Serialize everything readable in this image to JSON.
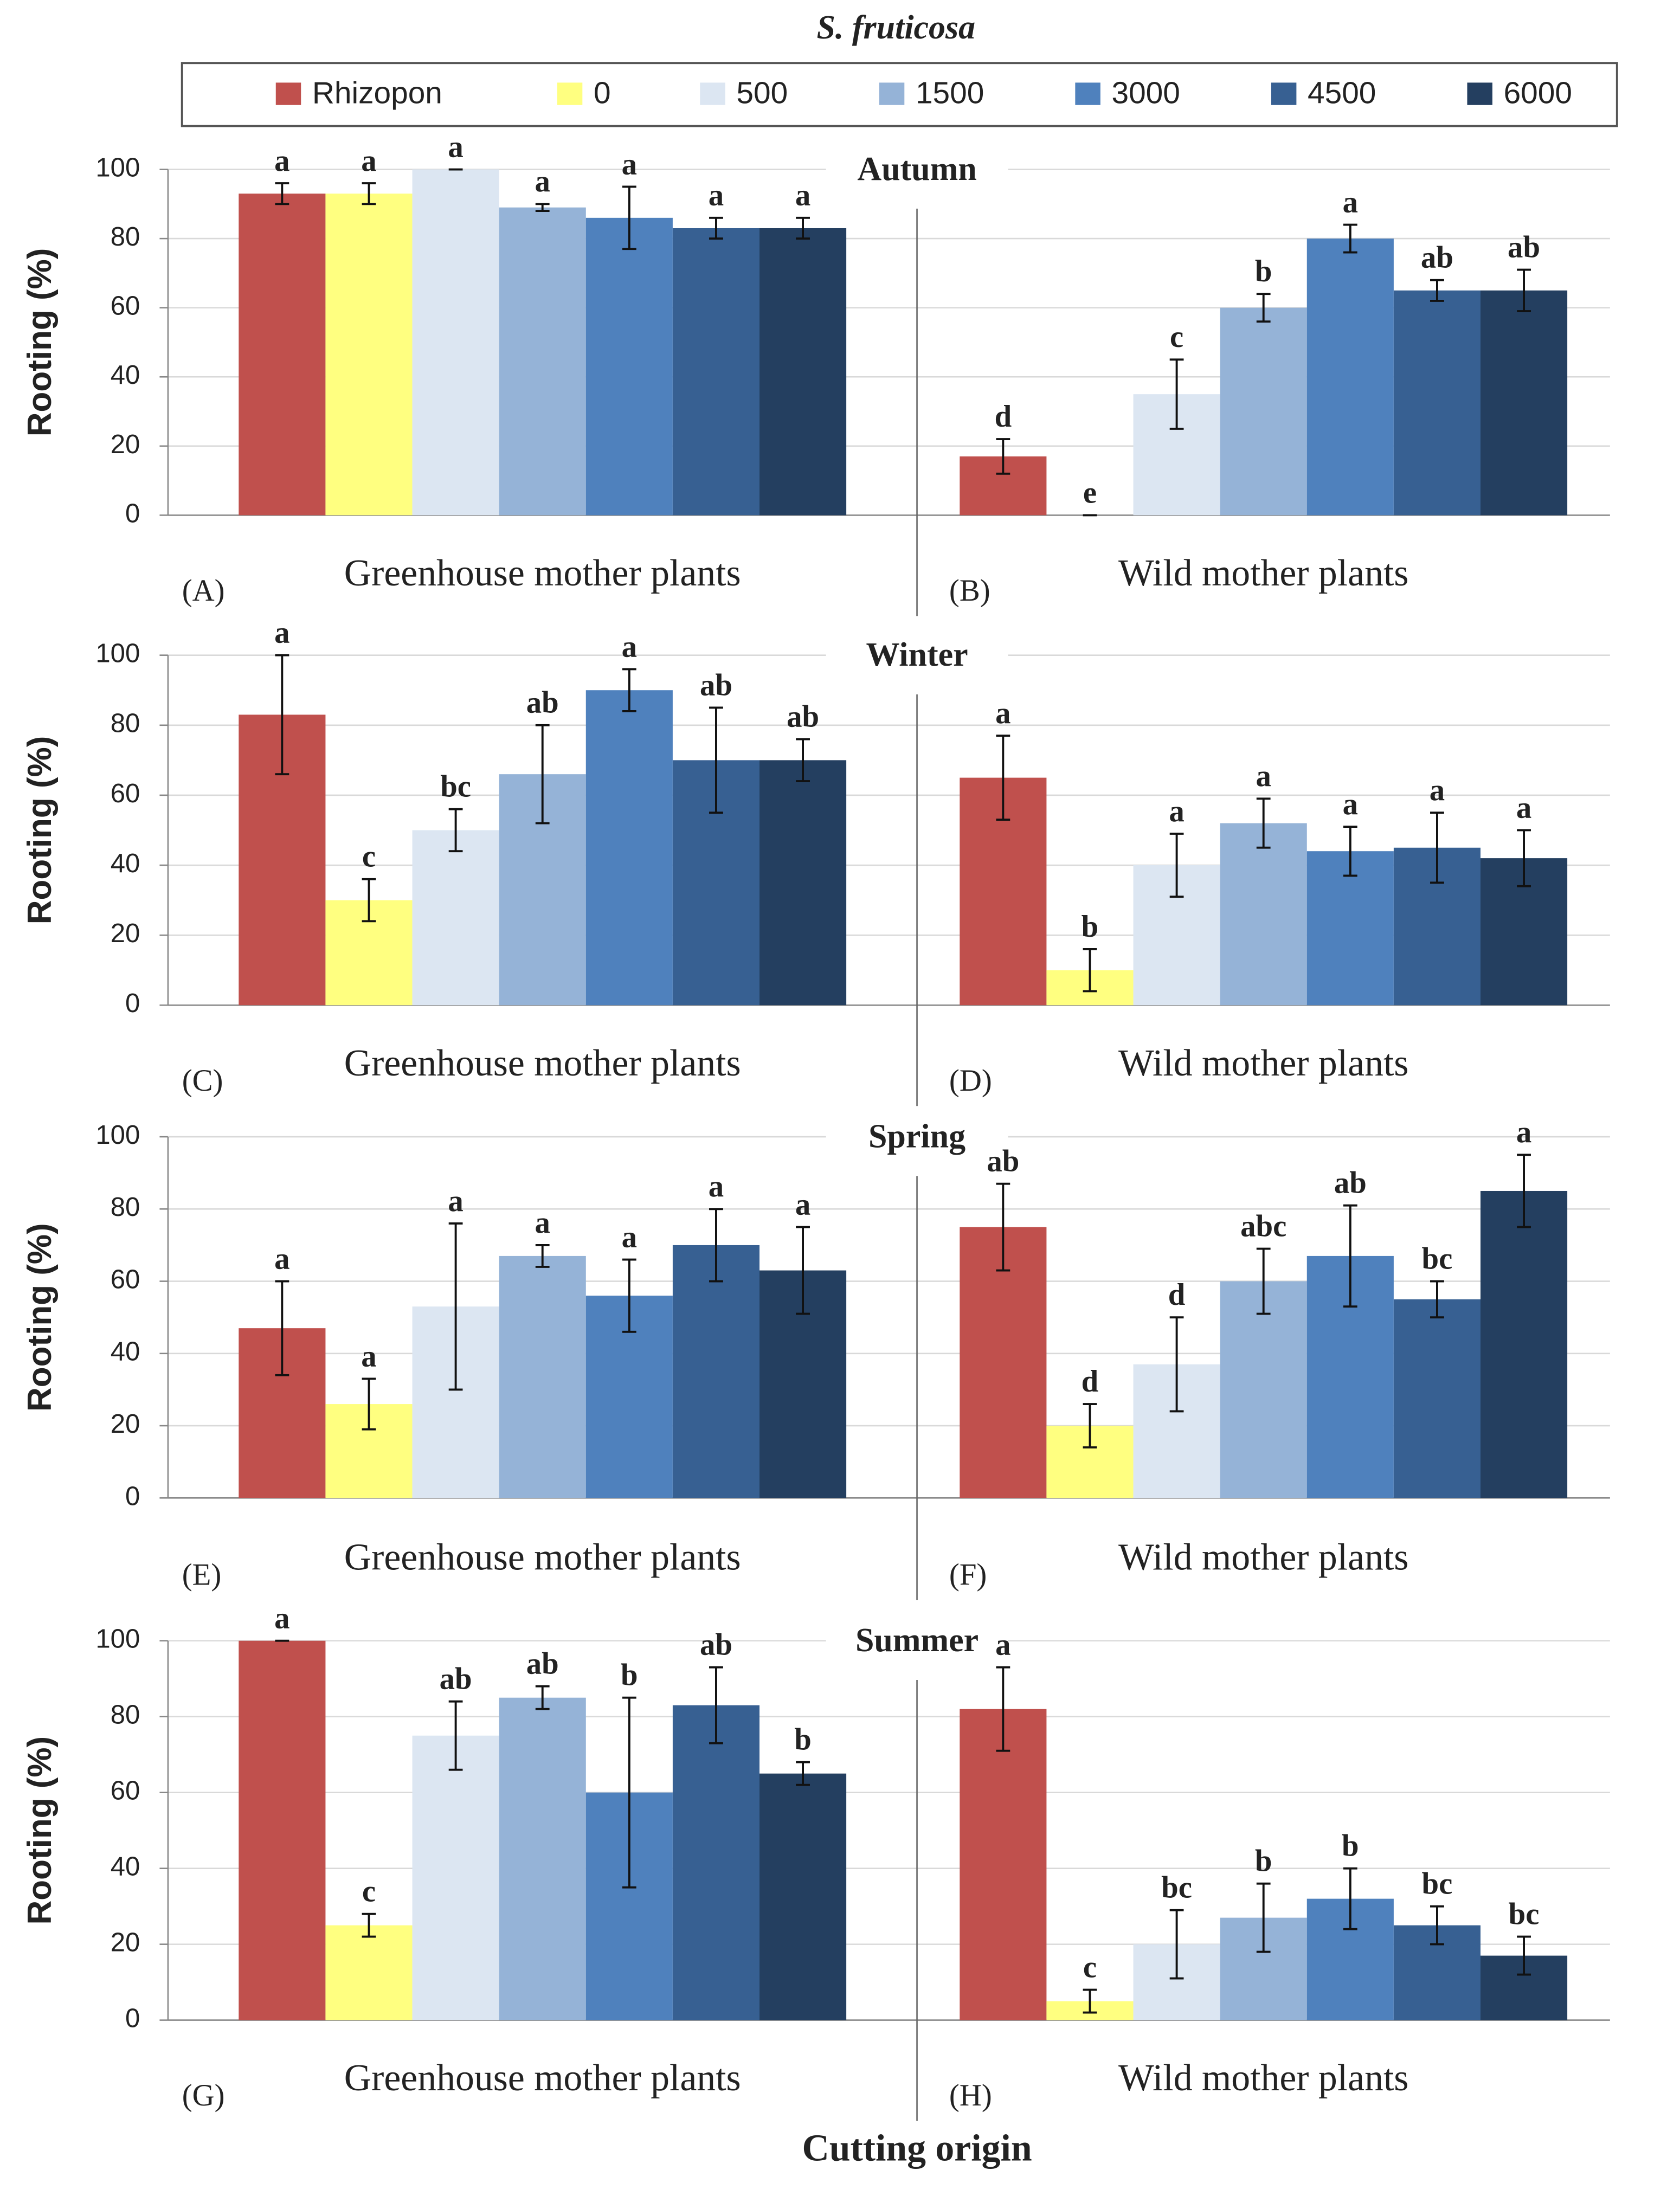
{
  "title": "S. fruticosa",
  "xlabel": "Cutting origin",
  "chart_data": [
    {
      "type": "bar",
      "title": "Autumn",
      "ylabel": "Rooting  (%)",
      "categories": [
        "Greenhouse mother plants",
        "Wild mother plants"
      ],
      "panel_labels": [
        "(A)",
        "(B)"
      ],
      "ylim": [
        0,
        100
      ],
      "yticks": [
        0,
        20,
        40,
        60,
        80,
        100
      ],
      "grid": true,
      "series": [
        {
          "name": "Rhizopon",
          "color": "#c0504d",
          "values": [
            93,
            17
          ],
          "errors": [
            3,
            5
          ],
          "letters": [
            "a",
            "d"
          ]
        },
        {
          "name": "0",
          "color": "#ffff80",
          "values": [
            93,
            0
          ],
          "errors": [
            3,
            0
          ],
          "letters": [
            "a",
            "e"
          ]
        },
        {
          "name": "500",
          "color": "#dce6f2",
          "values": [
            100,
            35
          ],
          "errors": [
            0,
            10
          ],
          "letters": [
            "a",
            "c"
          ]
        },
        {
          "name": "1500",
          "color": "#95b3d7",
          "values": [
            89,
            60
          ],
          "errors": [
            1,
            4
          ],
          "letters": [
            "a",
            "b"
          ]
        },
        {
          "name": "3000",
          "color": "#4f81bd",
          "values": [
            86,
            80
          ],
          "errors": [
            9,
            4
          ],
          "letters": [
            "a",
            "a"
          ]
        },
        {
          "name": "4500",
          "color": "#376092",
          "values": [
            83,
            65
          ],
          "errors": [
            3,
            3
          ],
          "letters": [
            "a",
            "ab"
          ]
        },
        {
          "name": "6000",
          "color": "#243f60",
          "values": [
            83,
            65
          ],
          "errors": [
            3,
            6
          ],
          "letters": [
            "a",
            "ab"
          ]
        }
      ]
    },
    {
      "type": "bar",
      "title": "Winter",
      "ylabel": "Rooting  (%)",
      "categories": [
        "Greenhouse mother plants",
        "Wild mother plants"
      ],
      "panel_labels": [
        "(C)",
        "(D)"
      ],
      "ylim": [
        0,
        100
      ],
      "yticks": [
        0,
        20,
        40,
        60,
        80,
        100
      ],
      "grid": true,
      "series": [
        {
          "values": [
            83,
            65
          ],
          "errors": [
            17,
            12
          ],
          "letters": [
            "a",
            "a"
          ]
        },
        {
          "values": [
            30,
            10
          ],
          "errors": [
            6,
            6
          ],
          "letters": [
            "c",
            "b"
          ]
        },
        {
          "values": [
            50,
            40
          ],
          "errors": [
            6,
            9
          ],
          "letters": [
            "bc",
            "a"
          ]
        },
        {
          "values": [
            66,
            52
          ],
          "errors": [
            14,
            7
          ],
          "letters": [
            "ab",
            "a"
          ]
        },
        {
          "values": [
            90,
            44
          ],
          "errors": [
            6,
            7
          ],
          "letters": [
            "a",
            "a"
          ]
        },
        {
          "values": [
            70,
            45
          ],
          "errors": [
            15,
            10
          ],
          "letters": [
            "ab",
            "a"
          ]
        },
        {
          "values": [
            70,
            42
          ],
          "errors": [
            6,
            8
          ],
          "letters": [
            "ab",
            "a"
          ]
        }
      ]
    },
    {
      "type": "bar",
      "title": "Spring",
      "ylabel": "Rooting  (%)",
      "categories": [
        "Greenhouse mother plants",
        "Wild mother plants"
      ],
      "panel_labels": [
        "(E)",
        "(F)"
      ],
      "ylim": [
        0,
        100
      ],
      "yticks": [
        0,
        20,
        40,
        60,
        80,
        100
      ],
      "grid": true,
      "series": [
        {
          "values": [
            47,
            75
          ],
          "errors": [
            13,
            12
          ],
          "letters": [
            "a",
            "ab"
          ]
        },
        {
          "values": [
            26,
            20
          ],
          "errors": [
            7,
            6
          ],
          "letters": [
            "a",
            "d"
          ]
        },
        {
          "values": [
            53,
            37
          ],
          "errors": [
            23,
            13
          ],
          "letters": [
            "a",
            "d"
          ]
        },
        {
          "values": [
            67,
            60
          ],
          "errors": [
            3,
            9
          ],
          "letters": [
            "a",
            "abc"
          ]
        },
        {
          "values": [
            56,
            67
          ],
          "errors": [
            10,
            14
          ],
          "letters": [
            "a",
            "ab"
          ]
        },
        {
          "values": [
            70,
            55
          ],
          "errors": [
            10,
            5
          ],
          "letters": [
            "a",
            "bc"
          ]
        },
        {
          "values": [
            63,
            85
          ],
          "errors": [
            12,
            10
          ],
          "letters": [
            "a",
            "a"
          ]
        }
      ]
    },
    {
      "type": "bar",
      "title": "Summer",
      "ylabel": "Rooting  (%)",
      "categories": [
        "Greenhouse mother plants",
        "Wild mother plants"
      ],
      "panel_labels": [
        "(G)",
        "(H)"
      ],
      "ylim": [
        0,
        100
      ],
      "yticks": [
        0,
        20,
        40,
        60,
        80,
        100
      ],
      "grid": true,
      "series": [
        {
          "values": [
            100,
            82
          ],
          "errors": [
            0,
            11
          ],
          "letters": [
            "a",
            "a"
          ]
        },
        {
          "values": [
            25,
            5
          ],
          "errors": [
            3,
            3
          ],
          "letters": [
            "c",
            "c"
          ]
        },
        {
          "values": [
            75,
            20
          ],
          "errors": [
            9,
            9
          ],
          "letters": [
            "ab",
            "bc"
          ]
        },
        {
          "values": [
            85,
            27
          ],
          "errors": [
            3,
            9
          ],
          "letters": [
            "ab",
            "b"
          ]
        },
        {
          "values": [
            60,
            32
          ],
          "errors": [
            25,
            8
          ],
          "letters": [
            "b",
            "b"
          ]
        },
        {
          "values": [
            83,
            25
          ],
          "errors": [
            10,
            5
          ],
          "letters": [
            "ab",
            "bc"
          ]
        },
        {
          "values": [
            65,
            17
          ],
          "errors": [
            3,
            5
          ],
          "letters": [
            "b",
            "bc"
          ]
        }
      ]
    }
  ]
}
